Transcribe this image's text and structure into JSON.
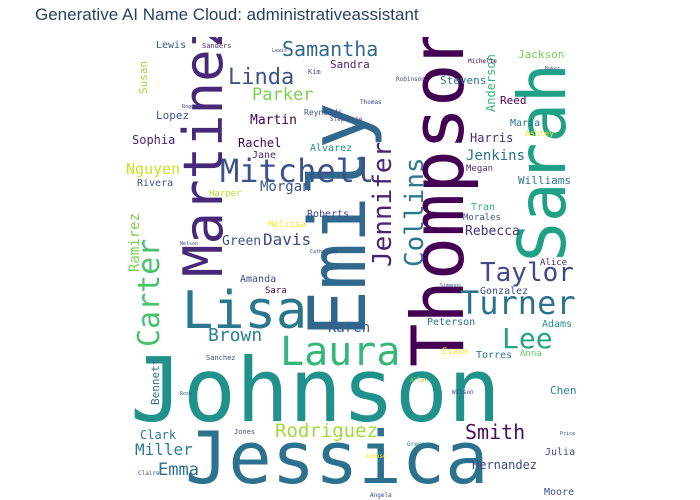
{
  "title": "Generative AI Name Cloud: administrativeassistant",
  "words": [
    {
      "text": "Johnson",
      "color": "#21918c"
    },
    {
      "text": "Jessica",
      "color": "#2c728e"
    },
    {
      "text": "Emily",
      "color": "#31688e"
    },
    {
      "text": "Thompson",
      "color": "#440154"
    },
    {
      "text": "Sarah",
      "color": "#1fa187"
    },
    {
      "text": "Martinez",
      "color": "#482878"
    },
    {
      "text": "Lisa",
      "color": "#2a788e"
    },
    {
      "text": "Laura",
      "color": "#35b779"
    },
    {
      "text": "Turner",
      "color": "#2c728e"
    },
    {
      "text": "Mitchell",
      "color": "#3b528b"
    },
    {
      "text": "Jennifer",
      "color": "#482475"
    },
    {
      "text": "Collins",
      "color": "#2a788e"
    },
    {
      "text": "Carter",
      "color": "#4ac16d"
    },
    {
      "text": "Taylor",
      "color": "#3e4a89"
    },
    {
      "text": "Lee",
      "color": "#21a585"
    },
    {
      "text": "Samantha",
      "color": "#31688e"
    },
    {
      "text": "Linda",
      "color": "#3b528b"
    },
    {
      "text": "Smith",
      "color": "#471063"
    },
    {
      "text": "Rodriguez",
      "color": "#a0da39"
    },
    {
      "text": "Brown",
      "color": "#26828e"
    },
    {
      "text": "Parker",
      "color": "#7ad151"
    },
    {
      "text": "Miller",
      "color": "#287d8e"
    },
    {
      "text": "Emma",
      "color": "#2c728e"
    },
    {
      "text": "Davis",
      "color": "#3e4a89"
    },
    {
      "text": "Karen",
      "color": "#355f8d"
    },
    {
      "text": "Morgan",
      "color": "#39568c"
    },
    {
      "text": "Nguyen",
      "color": "#cae11f"
    },
    {
      "text": "Jenkins",
      "color": "#2c728e"
    },
    {
      "text": "Rebecca",
      "color": "#46337e"
    },
    {
      "text": "Green",
      "color": "#3b528b"
    },
    {
      "text": "Clark",
      "color": "#2a788e"
    },
    {
      "text": "Hernandez",
      "color": "#3e4a89"
    },
    {
      "text": "Sophia",
      "color": "#482878"
    },
    {
      "text": "Martin",
      "color": "#440154"
    },
    {
      "text": "Rachel",
      "color": "#440154"
    },
    {
      "text": "Harris",
      "color": "#482878"
    },
    {
      "text": "Ramirez",
      "color": "#7ad151"
    },
    {
      "text": "Bennett",
      "color": "#2c728e"
    },
    {
      "text": "Anderson",
      "color": "#35b779"
    },
    {
      "text": "Chen",
      "color": "#26828e"
    },
    {
      "text": "Williams",
      "color": "#2a788e"
    },
    {
      "text": "Sandra",
      "color": "#481f70"
    },
    {
      "text": "Jackson",
      "color": "#75d054"
    },
    {
      "text": "Lopez",
      "color": "#3b528b"
    },
    {
      "text": "Susan",
      "color": "#a0da39"
    },
    {
      "text": "Lewis",
      "color": "#3b528b"
    },
    {
      "text": "Stevens",
      "color": "#2a788e"
    },
    {
      "text": "Reed",
      "color": "#440154"
    },
    {
      "text": "Maria",
      "color": "#2c728e"
    },
    {
      "text": "Roberts",
      "color": "#3e4a89"
    },
    {
      "text": "Alvarez",
      "color": "#21918c"
    },
    {
      "text": "Gonzalez",
      "color": "#3b528b"
    },
    {
      "text": "Adams",
      "color": "#21918c"
    },
    {
      "text": "Torres",
      "color": "#2a788e"
    },
    {
      "text": "Amanda",
      "color": "#3e4a89"
    },
    {
      "text": "Peterson",
      "color": "#2c728e"
    },
    {
      "text": "Jane",
      "color": "#482878"
    },
    {
      "text": "Rivera",
      "color": "#3b528b"
    },
    {
      "text": "Megan",
      "color": "#46337e"
    },
    {
      "text": "Tran",
      "color": "#35b779"
    },
    {
      "text": "Morales",
      "color": "#39568c"
    },
    {
      "text": "Alice",
      "color": "#482878"
    },
    {
      "text": "Anna",
      "color": "#5ec962"
    },
    {
      "text": "Evans",
      "color": "#fde725"
    },
    {
      "text": "Harper",
      "color": "#b5de2b"
    },
    {
      "text": "Julia",
      "color": "#3e4a89"
    },
    {
      "text": "Sara",
      "color": "#440154"
    },
    {
      "text": "Moore",
      "color": "#3e4a89"
    },
    {
      "text": "Melissa",
      "color": "#fde725"
    },
    {
      "text": "Ashley",
      "color": "#fde725"
    },
    {
      "text": "Sanders",
      "color": "#482878"
    },
    {
      "text": "Reynolds",
      "color": "#3b528b"
    },
    {
      "text": "Michelle",
      "color": "#440154"
    },
    {
      "text": "Kim",
      "color": "#3e4a89"
    },
    {
      "text": "Robinson",
      "color": "#3e4a89"
    },
    {
      "text": "Thomas",
      "color": "#3e4a89"
    },
    {
      "text": "Stephanie",
      "color": "#3e4a89"
    },
    {
      "text": "Sanchez",
      "color": "#3b528b"
    },
    {
      "text": "Allen",
      "color": "#8fd744"
    },
    {
      "text": "Wilson",
      "color": "#3e4a89"
    },
    {
      "text": "Jones",
      "color": "#3e4a89"
    },
    {
      "text": "Greene",
      "color": "#26828e"
    },
    {
      "text": "Claire",
      "color": "#3e4a89"
    },
    {
      "text": "Angela",
      "color": "#3e4a89"
    },
    {
      "text": "Johnso",
      "color": "#fde725"
    },
    {
      "text": "Lewis",
      "color": "#3e4a89"
    },
    {
      "text": "Rogers",
      "color": "#3e4a89"
    },
    {
      "text": "Simmons",
      "color": "#3e4a89"
    },
    {
      "text": "Catherine",
      "color": "#3e4a89"
    },
    {
      "text": "Nelson",
      "color": "#3e4a89"
    },
    {
      "text": "Price",
      "color": "#3e4a89"
    },
    {
      "text": "Baker",
      "color": "#3e4a89"
    },
    {
      "text": "Ross",
      "color": "#3e4a89"
    }
  ]
}
